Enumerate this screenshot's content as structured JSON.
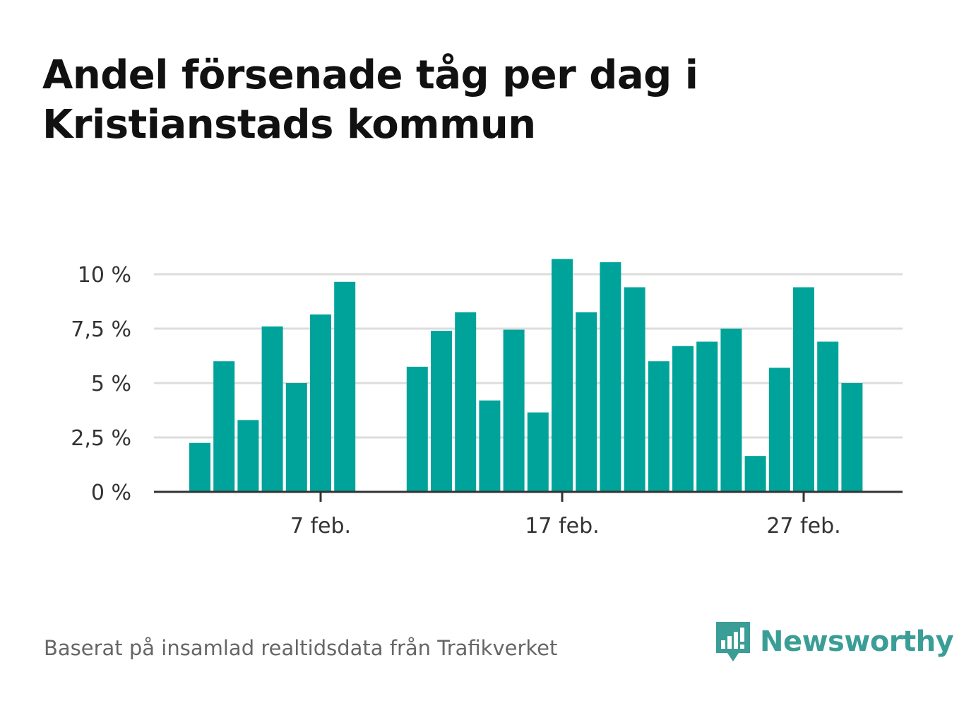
{
  "title_lines": [
    "Andel försenade tåg per dag i",
    "Kristianstads kommun"
  ],
  "source": "Baserat på insamlad realtidsdata från Trafikverket",
  "brand": {
    "name": "Newsworthy",
    "logo_icon": "bar-chart-speech-bubble-icon"
  },
  "colors": {
    "bar": "#00a39a",
    "grid": "#dddddd",
    "axis": "#333333",
    "brand": "#3a9e96"
  },
  "chart_data": {
    "type": "bar",
    "title": "Andel försenade tåg per dag i Kristianstads kommun",
    "xlabel": "",
    "ylabel": "",
    "unit": "%",
    "x_start": "2 feb.",
    "x": [
      "2 feb.",
      "3 feb.",
      "4 feb.",
      "5 feb.",
      "6 feb.",
      "7 feb.",
      "8 feb.",
      "9 feb.",
      "10 feb.",
      "11 feb.",
      "12 feb.",
      "13 feb.",
      "14 feb.",
      "15 feb.",
      "16 feb.",
      "17 feb.",
      "18 feb.",
      "19 feb.",
      "20 feb.",
      "21 feb.",
      "22 feb.",
      "23 feb.",
      "24 feb.",
      "25 feb.",
      "26 feb.",
      "27 feb.",
      "28 feb.",
      "29 feb."
    ],
    "values": [
      2.25,
      6.0,
      3.3,
      7.6,
      5.0,
      8.15,
      9.65,
      null,
      null,
      5.75,
      7.4,
      8.25,
      4.2,
      7.45,
      3.65,
      10.7,
      8.25,
      10.55,
      9.4,
      6.0,
      6.7,
      6.9,
      7.5,
      1.65,
      5.7,
      9.4,
      6.9,
      5.0
    ],
    "ylim": [
      0,
      11.5
    ],
    "yticks": [
      0,
      2.5,
      5,
      7.5,
      10
    ],
    "ytick_labels": [
      "0 %",
      "2,5 %",
      "5 %",
      "7,5 %",
      "10 %"
    ],
    "xticks": [
      {
        "date": "7 feb.",
        "label": "7 feb."
      },
      {
        "date": "17 feb.",
        "label": "17 feb."
      },
      {
        "date": "27 feb.",
        "label": "27 feb."
      }
    ],
    "grid": true,
    "legend": "none"
  }
}
